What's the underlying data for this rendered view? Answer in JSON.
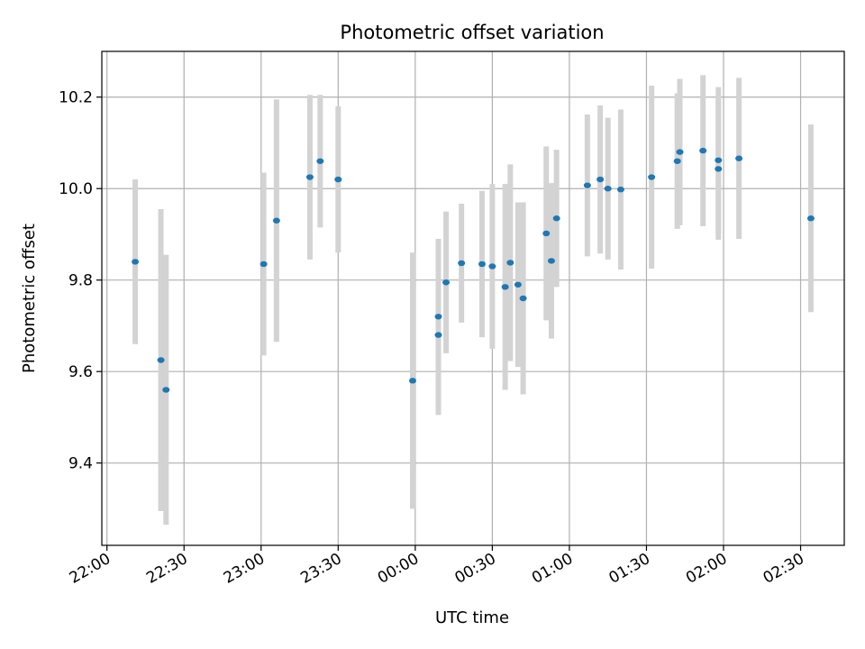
{
  "chart_data": {
    "type": "scatter",
    "title": "Photometric offset variation",
    "xlabel": "UTC time",
    "ylabel": "Photometric offset",
    "grid": true,
    "x_ticks": [
      "22:00",
      "22:30",
      "23:00",
      "23:30",
      "00:00",
      "00:30",
      "01:00",
      "01:30",
      "02:00",
      "02:30"
    ],
    "y_ticks": [
      "9.4",
      "9.6",
      "9.8",
      "10.0",
      "10.2"
    ],
    "xlim": [
      "21:58",
      "02:47"
    ],
    "ylim": [
      9.22,
      10.3
    ],
    "series": [
      {
        "marker_color": "#1f77b4",
        "errorbar_color": "#d3d3d3",
        "points": [
          {
            "x": "22:11",
            "y": 9.84,
            "err": 0.18
          },
          {
            "x": "22:21",
            "y": 9.625,
            "err": 0.33
          },
          {
            "x": "22:23",
            "y": 9.56,
            "err": 0.295
          },
          {
            "x": "23:01",
            "y": 9.835,
            "err": 0.2
          },
          {
            "x": "23:06",
            "y": 9.93,
            "err": 0.265
          },
          {
            "x": "23:19",
            "y": 10.025,
            "err": 0.18
          },
          {
            "x": "23:23",
            "y": 10.06,
            "err": 0.145
          },
          {
            "x": "23:30",
            "y": 10.02,
            "err": 0.16
          },
          {
            "x": "23:59",
            "y": 9.58,
            "err": 0.28
          },
          {
            "x": "00:09",
            "y": 9.72,
            "err": 0.17
          },
          {
            "x": "00:09",
            "y": 9.68,
            "err": 0.175
          },
          {
            "x": "00:12",
            "y": 9.795,
            "err": 0.155
          },
          {
            "x": "00:18",
            "y": 9.837,
            "err": 0.13
          },
          {
            "x": "00:26",
            "y": 9.835,
            "err": 0.16
          },
          {
            "x": "00:30",
            "y": 9.83,
            "err": 0.18
          },
          {
            "x": "00:35",
            "y": 9.785,
            "err": 0.225
          },
          {
            "x": "00:37",
            "y": 9.838,
            "err": 0.215
          },
          {
            "x": "00:40",
            "y": 9.79,
            "err": 0.18
          },
          {
            "x": "00:42",
            "y": 9.76,
            "err": 0.21
          },
          {
            "x": "00:51",
            "y": 9.902,
            "err": 0.19
          },
          {
            "x": "00:53",
            "y": 9.842,
            "err": 0.17
          },
          {
            "x": "00:55",
            "y": 9.935,
            "err": 0.15
          },
          {
            "x": "01:07",
            "y": 10.007,
            "err": 0.155
          },
          {
            "x": "01:12",
            "y": 10.02,
            "err": 0.162
          },
          {
            "x": "01:15",
            "y": 10.0,
            "err": 0.155
          },
          {
            "x": "01:20",
            "y": 9.998,
            "err": 0.175
          },
          {
            "x": "01:32",
            "y": 10.025,
            "err": 0.2
          },
          {
            "x": "01:42",
            "y": 10.06,
            "err": 0.148
          },
          {
            "x": "01:43",
            "y": 10.08,
            "err": 0.16
          },
          {
            "x": "01:52",
            "y": 10.083,
            "err": 0.165
          },
          {
            "x": "01:58",
            "y": 10.043,
            "err": 0.155
          },
          {
            "x": "01:58",
            "y": 10.062,
            "err": 0.16
          },
          {
            "x": "02:06",
            "y": 10.066,
            "err": 0.176
          },
          {
            "x": "02:34",
            "y": 9.935,
            "err": 0.205
          }
        ]
      }
    ]
  }
}
